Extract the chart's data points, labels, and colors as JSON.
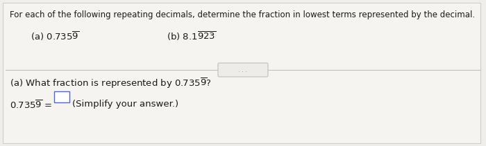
{
  "bg_color": "#f0eeea",
  "panel_bg": "#f5f4f0",
  "top_text": "For each of the following repeating decimals, determine the fraction in lowest terms represented by the decimal.",
  "font_size_top": 8.5,
  "font_size_items": 9.5,
  "font_size_question": 9.5,
  "font_size_eq": 9.5,
  "text_color": "#1a1a1a",
  "divider_color": "#c0c0c0",
  "dots_box_bg": "#eeece8",
  "dots_box_edge": "#c0bfbb",
  "answer_box_edge": "#5566bb",
  "answer_box_bg": "#ffffff"
}
